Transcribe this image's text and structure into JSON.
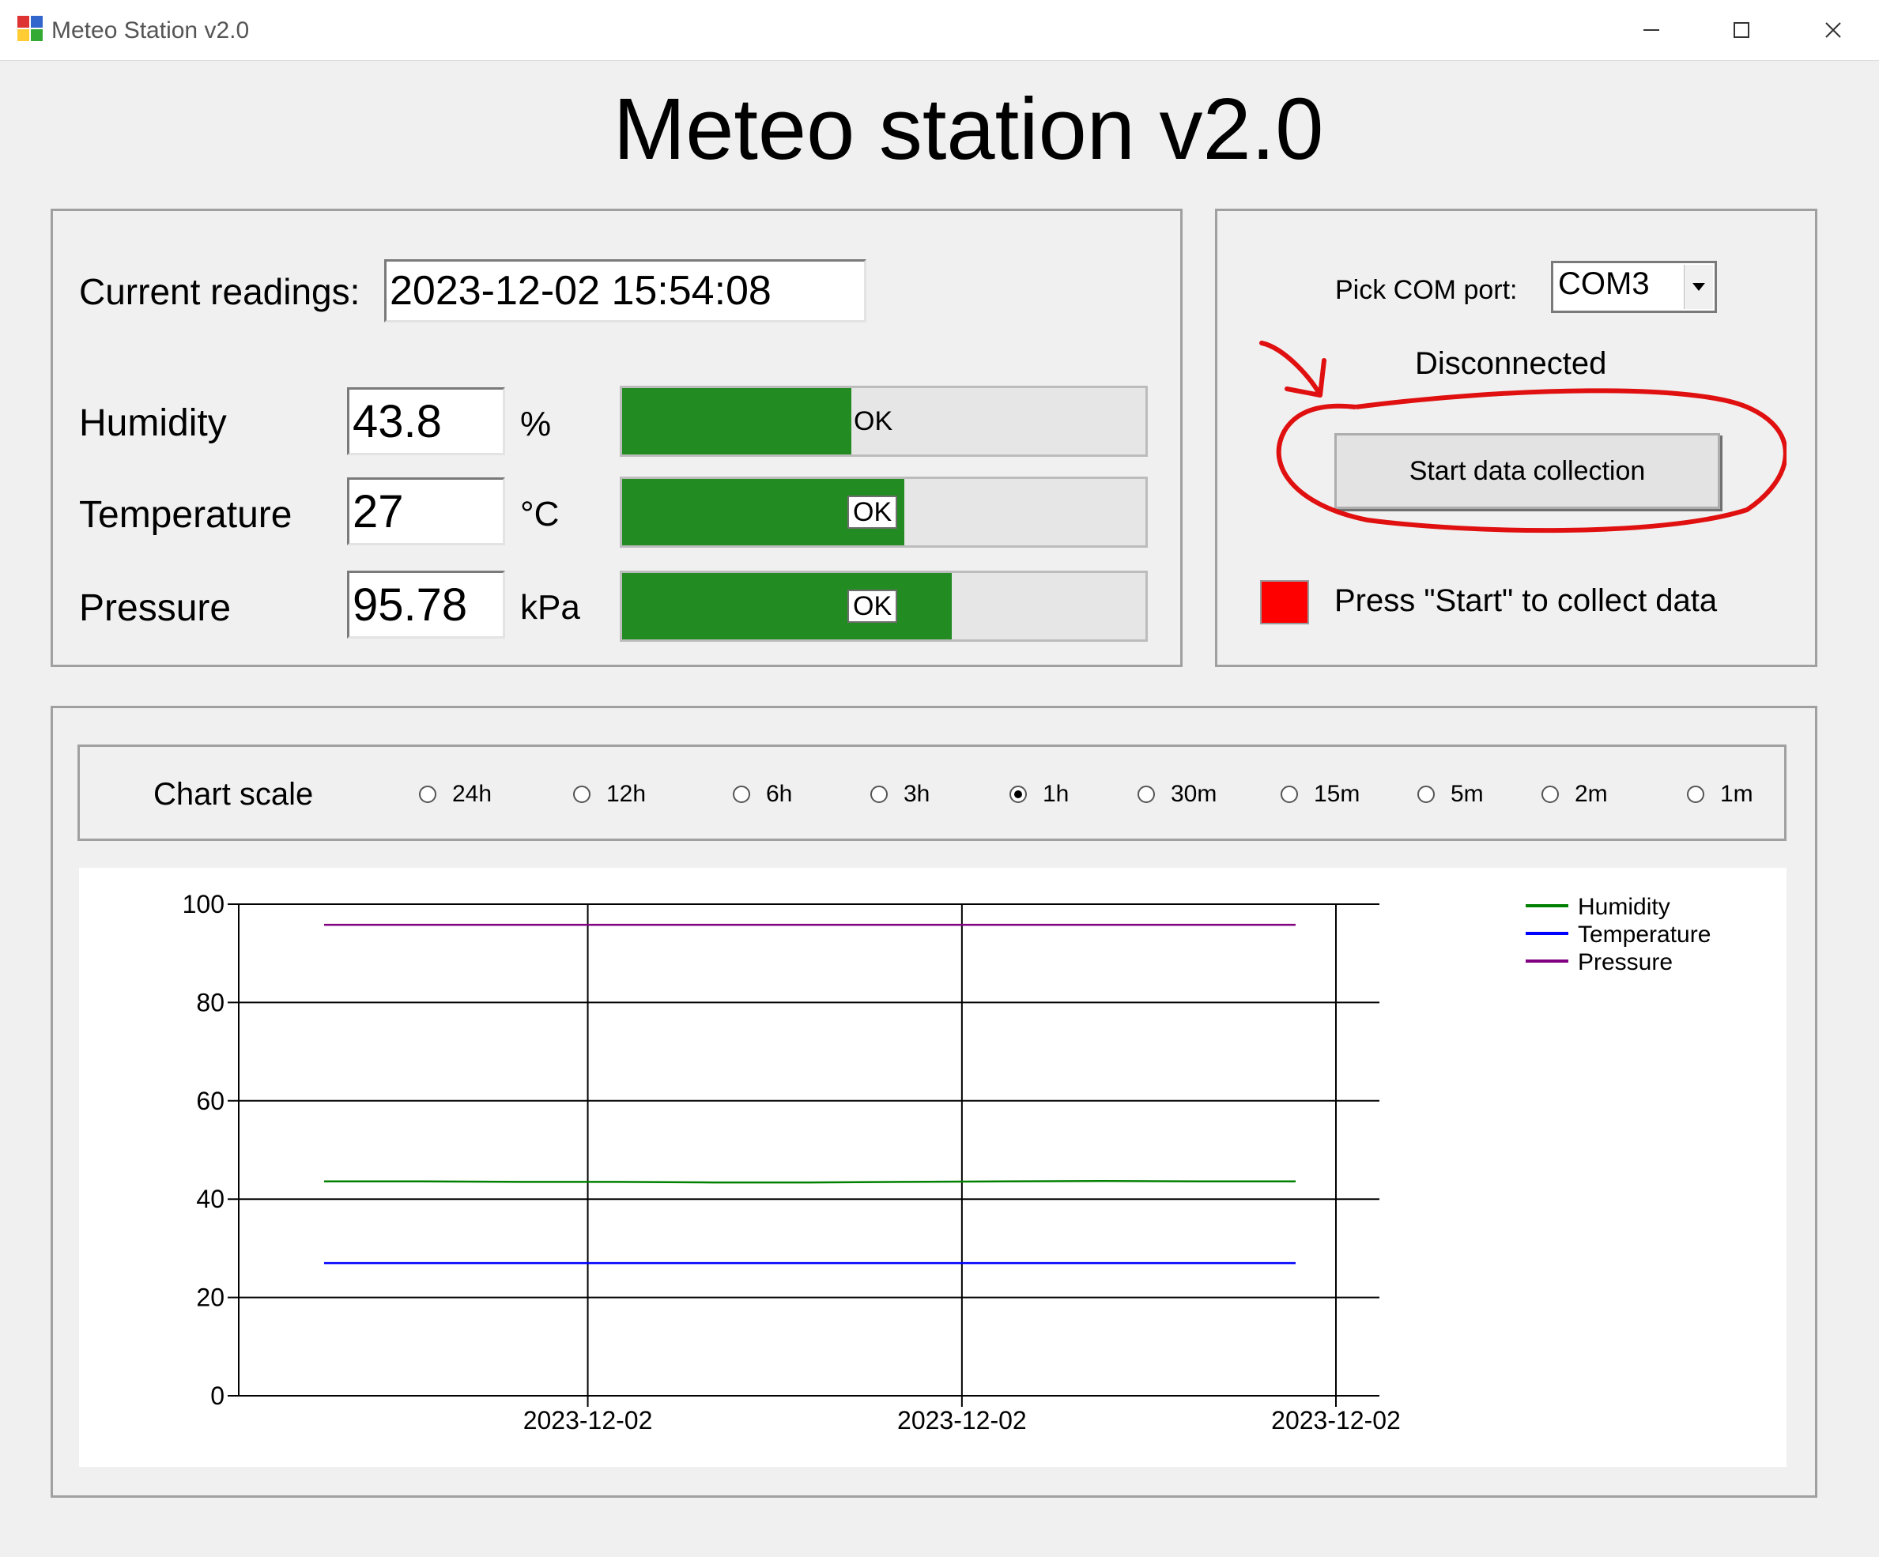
{
  "window": {
    "title": "Meteo Station v2.0",
    "minimize_icon": "minimize-icon",
    "maximize_icon": "maximize-icon",
    "close_icon": "close-icon"
  },
  "header": {
    "title": "Meteo station v2.0"
  },
  "readings": {
    "current_label": "Current readings:",
    "current_value": "2023-12-02 15:54:08",
    "rows": [
      {
        "label": "Humidity",
        "value": "43.8",
        "unit": "%",
        "status": "OK",
        "level_percent": 43.8
      },
      {
        "label": "Temperature",
        "value": "27",
        "unit": "°C",
        "status": "OK",
        "level_percent": 54
      },
      {
        "label": "Pressure",
        "value": "95.78",
        "unit": "kPa",
        "status": "OK",
        "level_percent": 63
      }
    ]
  },
  "connection": {
    "com_label": "Pick COM port:",
    "com_value": "COM3",
    "status_text": "Disconnected",
    "start_button": "Start data collection",
    "indicator_color": "#ff0000",
    "indicator_text": "Press \"Start\" to collect data",
    "annotation_color": "#e01010"
  },
  "chart_scale": {
    "label": "Chart scale",
    "options": [
      "24h",
      "12h",
      "6h",
      "3h",
      "1h",
      "30m",
      "15m",
      "5m",
      "2m",
      "1m"
    ],
    "selected": "1h"
  },
  "chart_data": {
    "type": "line",
    "ylim": [
      0,
      100
    ],
    "yticks": [
      "0",
      "20",
      "40",
      "60",
      "80",
      "100"
    ],
    "xtick_labels": [
      "2023-12-02",
      "2023-12-02",
      "2023-12-02"
    ],
    "grid": true,
    "legend_position": "top-right",
    "series": [
      {
        "name": "Humidity",
        "color": "#008000",
        "values": [
          43.6,
          43.6,
          43.5,
          43.5,
          43.4,
          43.4,
          43.5,
          43.6,
          43.7,
          43.6,
          43.6
        ]
      },
      {
        "name": "Temperature",
        "color": "#0000ff",
        "values": [
          27,
          27,
          27,
          27,
          27,
          27,
          27,
          27,
          27,
          27,
          27
        ]
      },
      {
        "name": "Pressure",
        "color": "#800080",
        "values": [
          95.8,
          95.8,
          95.8,
          95.8,
          95.8,
          95.8,
          95.8,
          95.8,
          95.8,
          95.8,
          95.8
        ]
      }
    ]
  }
}
